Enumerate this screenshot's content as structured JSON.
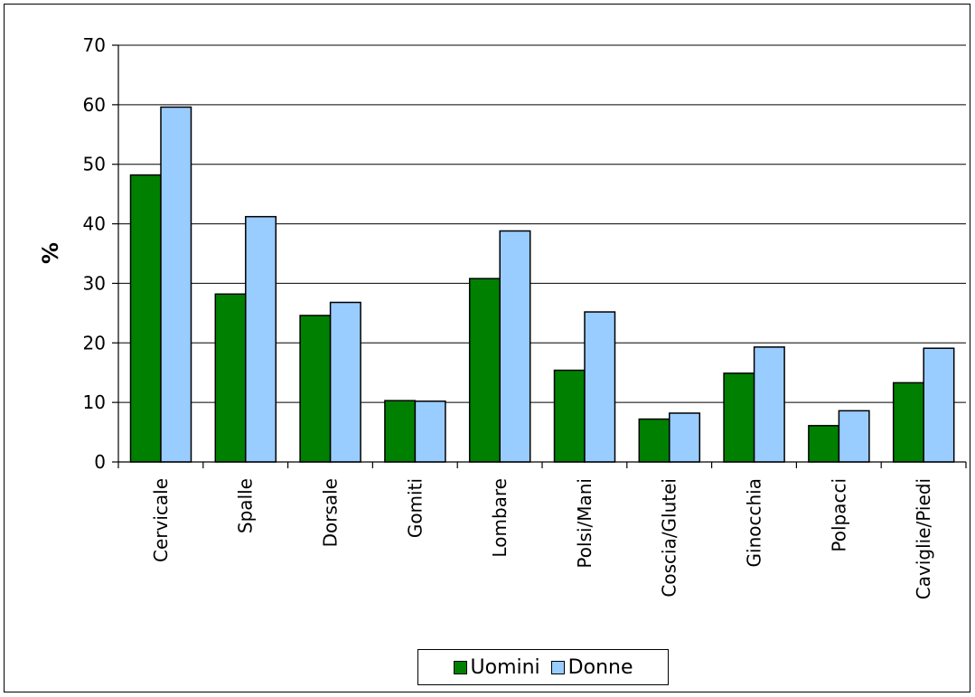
{
  "chart_data": {
    "type": "bar",
    "title": "",
    "xlabel": "",
    "ylabel": "%",
    "ylim": [
      0,
      70
    ],
    "yticks": [
      0,
      10,
      20,
      30,
      40,
      50,
      60,
      70
    ],
    "grid": true,
    "legend_position": "bottom",
    "categories": [
      "Cervicale",
      "Spalle",
      "Dorsale",
      "Gomiti",
      "Lombare",
      "Polsi/Mani",
      "Coscia/Glutei",
      "Ginocchia",
      "Polpacci",
      "Caviglie/Piedi"
    ],
    "series": [
      {
        "name": "Uomini",
        "color": "#008000",
        "values": [
          48.2,
          28.2,
          24.6,
          10.3,
          30.8,
          15.4,
          7.2,
          14.9,
          6.1,
          13.3
        ]
      },
      {
        "name": "Donne",
        "color": "#99ccff",
        "values": [
          59.6,
          41.2,
          26.8,
          10.2,
          38.8,
          25.2,
          8.2,
          19.3,
          8.6,
          19.1
        ]
      }
    ]
  }
}
